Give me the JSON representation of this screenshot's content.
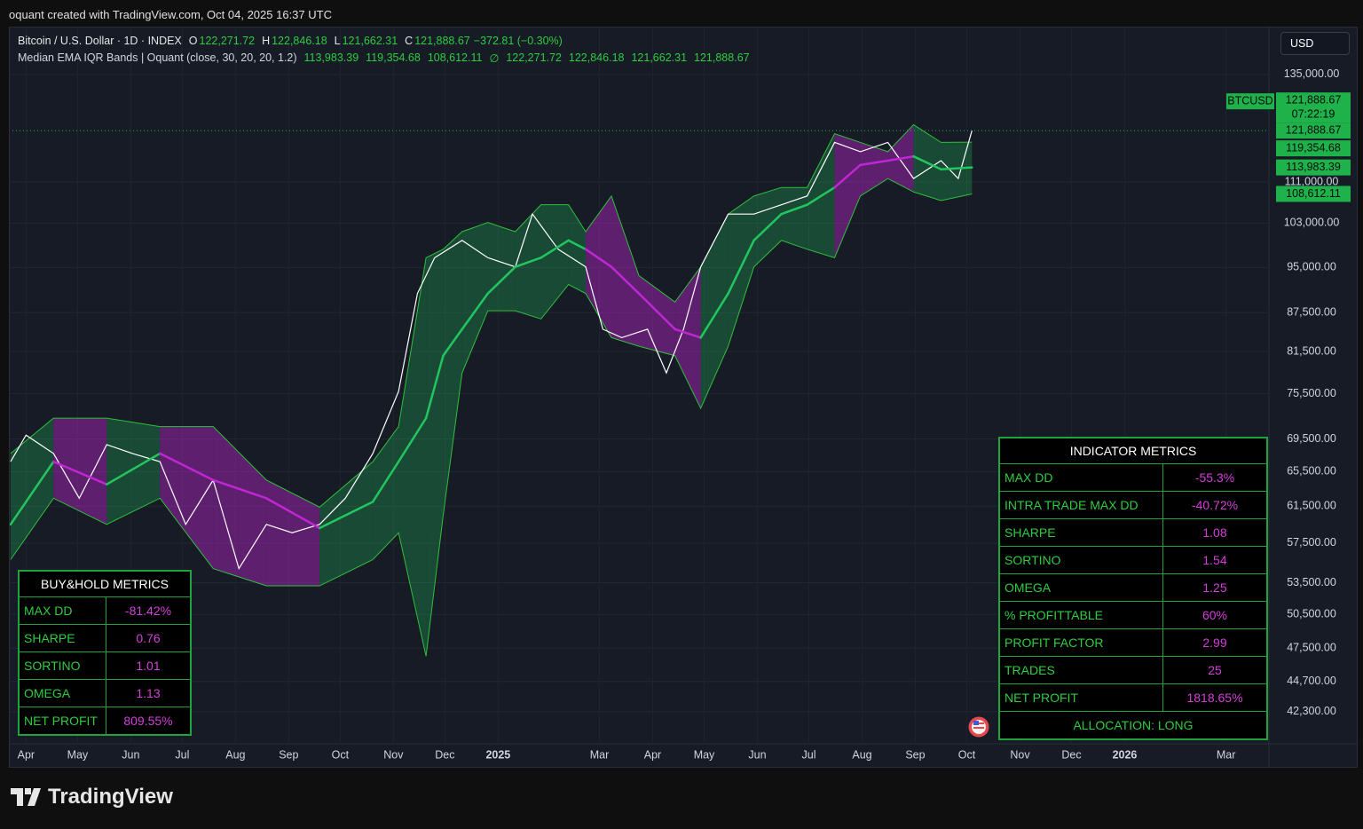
{
  "header": {
    "caption": "oquant created with TradingView.com, Oct 04, 2025 16:37 UTC",
    "symbol": "Bitcoin / U.S. Dollar · 1D · INDEX",
    "ohlc": [
      {
        "key": "O",
        "value": "122,271.72"
      },
      {
        "key": "H",
        "value": "122,846.18"
      },
      {
        "key": "L",
        "value": "121,662.31"
      },
      {
        "key": "C",
        "value": "121,888.67"
      }
    ],
    "change": "−372.81 (−0.30%)",
    "indicator": "Median EMA IQR Bands | Oquant (close, 30, 20, 20, 1.2)",
    "indicator_values": [
      "113,983.39",
      "119,354.68",
      "108,612.11",
      "∅",
      "122,271.72",
      "122,846.18",
      "121,662.31",
      "121,888.67"
    ]
  },
  "currency": "USD",
  "logo": "TradingView",
  "chart_data": {
    "type": "line",
    "log": true,
    "grid": true,
    "xlim": [
      -10,
      724
    ],
    "ylim": [
      39900,
      147300
    ],
    "xticks": [
      {
        "value": 0,
        "label": "Apr"
      },
      {
        "value": 30,
        "label": "May"
      },
      {
        "value": 61,
        "label": "Jun"
      },
      {
        "value": 91,
        "label": "Jul"
      },
      {
        "value": 122,
        "label": "Aug"
      },
      {
        "value": 153,
        "label": "Sep"
      },
      {
        "value": 183,
        "label": "Oct"
      },
      {
        "value": 214,
        "label": "Nov"
      },
      {
        "value": 244,
        "label": "Dec"
      },
      {
        "value": 275,
        "label": "2025",
        "bold": true
      },
      {
        "value": 334,
        "label": "Mar"
      },
      {
        "value": 365,
        "label": "Apr"
      },
      {
        "value": 395,
        "label": "May"
      },
      {
        "value": 426,
        "label": "Jun"
      },
      {
        "value": 456,
        "label": "Jul"
      },
      {
        "value": 487,
        "label": "Aug"
      },
      {
        "value": 518,
        "label": "Sep"
      },
      {
        "value": 548,
        "label": "Oct"
      },
      {
        "value": 579,
        "label": "Nov"
      },
      {
        "value": 609,
        "label": "Dec"
      },
      {
        "value": 640,
        "label": "2026",
        "bold": true
      },
      {
        "value": 699,
        "label": "Mar"
      }
    ],
    "yticks": [
      {
        "value": 135000,
        "label": "135,000.00"
      },
      {
        "value": 111000,
        "label": "111,000.00"
      },
      {
        "value": 103000,
        "label": "103,000.00"
      },
      {
        "value": 95000,
        "label": "95,000.00"
      },
      {
        "value": 87500,
        "label": "87,500.00"
      },
      {
        "value": 81500,
        "label": "81,500.00"
      },
      {
        "value": 75500,
        "label": "75,500.00"
      },
      {
        "value": 69500,
        "label": "69,500.00"
      },
      {
        "value": 65500,
        "label": "65,500.00"
      },
      {
        "value": 61500,
        "label": "61,500.00"
      },
      {
        "value": 57500,
        "label": "57,500.00"
      },
      {
        "value": 53500,
        "label": "53,500.00"
      },
      {
        "value": 50500,
        "label": "50,500.00"
      },
      {
        "value": 47500,
        "label": "47,500.00"
      },
      {
        "value": 44700,
        "label": "44,700.00"
      },
      {
        "value": 42300,
        "label": "42,300.00"
      }
    ],
    "price": {
      "name": "BTCUSD",
      "color": "#ffffff",
      "x": [
        -9,
        0,
        16,
        31,
        47,
        62,
        78,
        93,
        109,
        124,
        140,
        155,
        171,
        186,
        202,
        217,
        228,
        238,
        254,
        269,
        285,
        295,
        310,
        326,
        336,
        347,
        362,
        373,
        383,
        393,
        409,
        424,
        440,
        455,
        471,
        486,
        502,
        517,
        533,
        543,
        551
      ],
      "values": [
        66700,
        70000,
        67700,
        62400,
        68800,
        67700,
        66700,
        59500,
        64500,
        54900,
        59500,
        58600,
        59500,
        62400,
        67700,
        75800,
        90600,
        96700,
        99800,
        96700,
        95100,
        104700,
        98200,
        95100,
        84900,
        83600,
        84900,
        78400,
        84900,
        95100,
        104700,
        104700,
        106500,
        108200,
        119300,
        117300,
        119300,
        111700,
        115400,
        111700,
        121888.67
      ],
      "last_label": "121,888.67",
      "countdown": "07:22:19",
      "tag_color": "#1fb24a"
    },
    "bands": {
      "x": [
        -9,
        16,
        47,
        78,
        109,
        140,
        171,
        202,
        217,
        233,
        243,
        254,
        269,
        285,
        300,
        316,
        326,
        341,
        357,
        378,
        393,
        409,
        424,
        440,
        455,
        471,
        486,
        502,
        517,
        533,
        551
      ],
      "mid": [
        59500,
        66700,
        64000,
        67700,
        64500,
        62400,
        59100,
        62000,
        66700,
        72200,
        80900,
        84900,
        90600,
        95100,
        96700,
        99800,
        98200,
        95100,
        90600,
        84900,
        83600,
        90600,
        99800,
        104700,
        106500,
        109900,
        114500,
        115400,
        116300,
        113600,
        113983.39
      ],
      "upper": [
        67700,
        72200,
        72200,
        71100,
        71100,
        64500,
        61400,
        66700,
        71100,
        96700,
        98200,
        101400,
        103100,
        101400,
        106500,
        106500,
        101400,
        108200,
        93600,
        89200,
        95100,
        104700,
        108200,
        109900,
        109900,
        121200,
        119300,
        117300,
        123200,
        119300,
        119354.68
      ],
      "lower": [
        55800,
        62400,
        59500,
        62400,
        54900,
        53200,
        53200,
        55800,
        58600,
        46800,
        60500,
        78400,
        87800,
        87800,
        86500,
        92100,
        90600,
        83600,
        82300,
        80900,
        73500,
        82300,
        95100,
        99800,
        98200,
        96700,
        108200,
        111700,
        109000,
        107300,
        108612.11
      ],
      "colors": [
        "#22c55e",
        "#c026d3",
        "#22c55e",
        "#c026d3",
        "#c026d3",
        "#c026d3",
        "#22c55e",
        "#22c55e",
        "#22c55e",
        "#22c55e",
        "#22c55e",
        "#22c55e",
        "#22c55e",
        "#22c55e",
        "#22c55e",
        "#22c55e",
        "#c026d3",
        "#c026d3",
        "#c026d3",
        "#c026d3",
        "#22c55e",
        "#22c55e",
        "#22c55e",
        "#22c55e",
        "#22c55e",
        "#c026d3",
        "#c026d3",
        "#c026d3",
        "#22c55e",
        "#22c55e",
        "#22c55e"
      ],
      "edge_color": "#2fbf3a"
    },
    "price_tags": [
      {
        "value": 121888.67,
        "label": "121,888.67"
      },
      {
        "value": 119354.68,
        "label": "119,354.68"
      },
      {
        "value": 113983.39,
        "label": "113,983.39"
      },
      {
        "value": 108612.11,
        "label": "108,612.11"
      }
    ],
    "tag_color": "#1fb24a"
  },
  "buy_hold": {
    "title": "BUY&HOLD METRICS",
    "rows": [
      [
        "MAX DD",
        "-81.42%"
      ],
      [
        "SHARPE",
        "0.76"
      ],
      [
        "SORTINO",
        "1.01"
      ],
      [
        "OMEGA",
        "1.13"
      ],
      [
        "NET PROFIT",
        "809.55%"
      ]
    ]
  },
  "indicator_metrics": {
    "title": "INDICATOR METRICS",
    "rows": [
      [
        "MAX DD",
        "-55.3%"
      ],
      [
        "INTRA TRADE MAX DD",
        "-40.72%"
      ],
      [
        "SHARPE",
        "1.08"
      ],
      [
        "SORTINO",
        "1.54"
      ],
      [
        "OMEGA",
        "1.25"
      ],
      [
        "% PROFITTABLE",
        "60%"
      ],
      [
        "PROFIT FACTOR",
        "2.99"
      ],
      [
        "TRADES",
        "25"
      ],
      [
        "NET PROFIT",
        "1818.65%"
      ]
    ],
    "footer": "ALLOCATION: LONG"
  }
}
